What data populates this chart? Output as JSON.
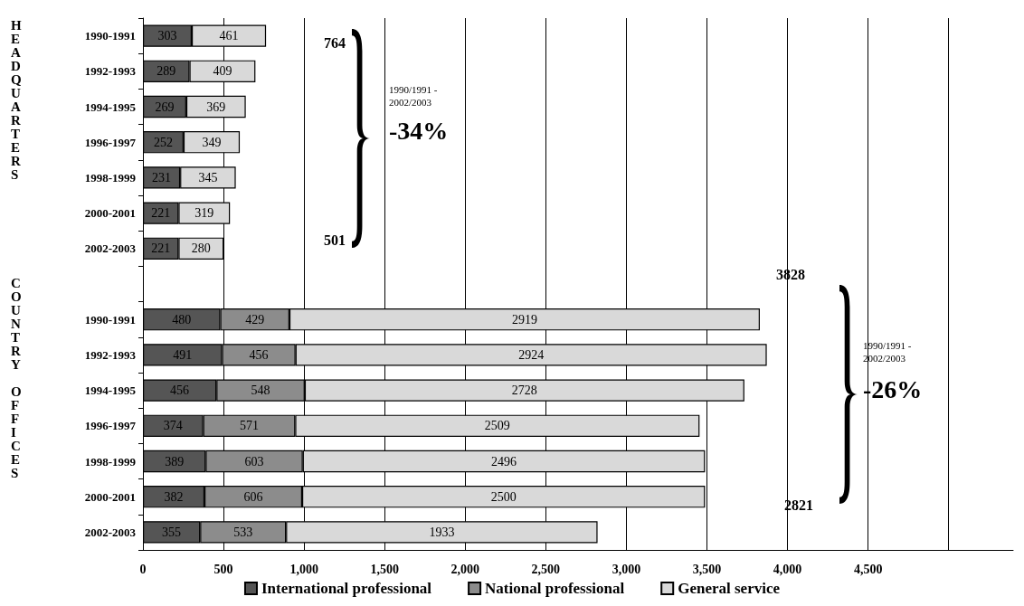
{
  "chart_data": {
    "type": "bar",
    "orientation": "horizontal",
    "stacked": true,
    "data_labels": true,
    "categories": [
      "1990-1991",
      "1992-1993",
      "1994-1995",
      "1996-1997",
      "1998-1999",
      "2000-2001",
      "2002-2003",
      null,
      "1990-1991",
      "1992-1993",
      "1994-1995",
      "1996-1997",
      "1998-1999",
      "2000-2001",
      "2002-2003"
    ],
    "series": [
      {
        "name": "International professional",
        "color": "#555555",
        "values": [
          303,
          289,
          269,
          252,
          231,
          221,
          221,
          null,
          480,
          491,
          456,
          374,
          389,
          382,
          355
        ]
      },
      {
        "name": "National professional",
        "color": "#8c8c8c",
        "values": [
          null,
          null,
          null,
          null,
          null,
          null,
          null,
          null,
          429,
          456,
          548,
          571,
          603,
          606,
          533
        ]
      },
      {
        "name": "General service",
        "color": "#d9d9d9",
        "values": [
          461,
          409,
          369,
          349,
          345,
          319,
          280,
          null,
          2919,
          2924,
          2728,
          2509,
          2496,
          2500,
          1933
        ]
      }
    ],
    "xlim": [
      0,
      5400
    ],
    "xticks": [
      0,
      500,
      {
        "value": 1000,
        "label": "1,000"
      },
      {
        "value": 1500,
        "label": "1,500"
      },
      {
        "value": 2000,
        "label": "2,000"
      },
      {
        "value": 2500,
        "label": "2,500"
      },
      {
        "value": 3000,
        "label": "3,000"
      },
      {
        "value": 3500,
        "label": "3,500"
      },
      {
        "value": 4000,
        "label": "4,000"
      },
      {
        "value": 4500,
        "label": "4,500"
      },
      {
        "value": 5000,
        "label": null
      }
    ],
    "grid": "x",
    "legend": "bottom",
    "annotations": [
      "HEADQUARTERS",
      "COUNTRY OFFICES",
      "764",
      "501",
      "1990/1991 -\n2002/2003",
      "-34%",
      "3828",
      "2821",
      "1990/1991 -\n2002/2003",
      "-26%"
    ]
  }
}
